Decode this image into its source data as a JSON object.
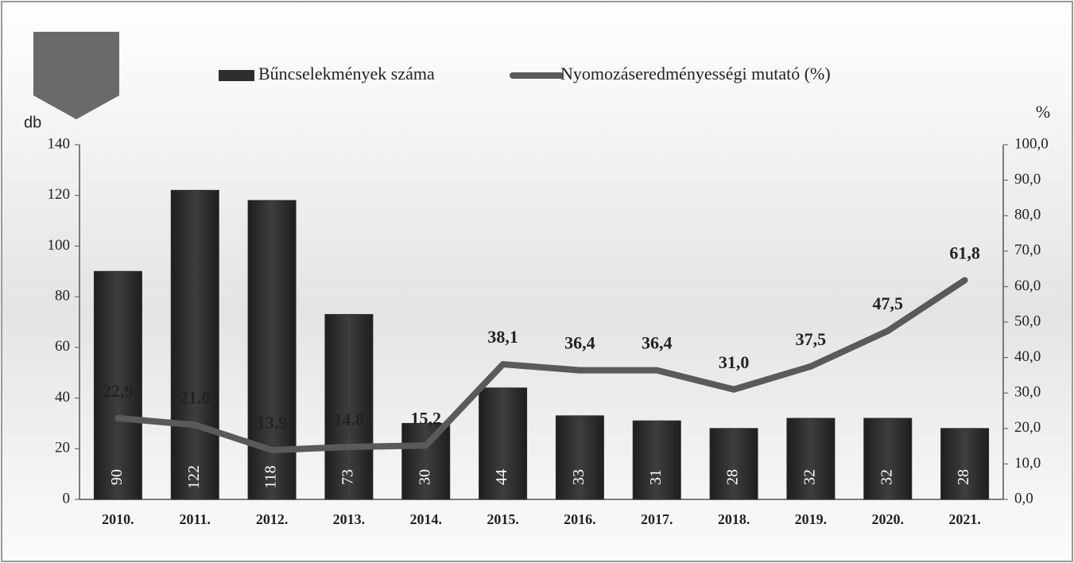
{
  "chart_data": {
    "type": "bar_line",
    "legend": "top",
    "y_label": "db",
    "y2_label": "%",
    "categories": [
      "2010.",
      "2011.",
      "2012.",
      "2013.",
      "2014.",
      "2015.",
      "2016.",
      "2017.",
      "2018.",
      "2019.",
      "2020.",
      "2021."
    ],
    "series": [
      {
        "name": "Bűncselekmények száma",
        "color": "#2e2e2e",
        "values": [
          90,
          122,
          118,
          73,
          30,
          44,
          33,
          31,
          28,
          32,
          32,
          28
        ]
      },
      {
        "name": "Nyomozáseredményességi mutató (%)",
        "color": "#5a5a5a",
        "axis": "y2",
        "values": [
          22.9,
          21.0,
          13.9,
          14.8,
          15.2,
          38.1,
          36.4,
          36.4,
          31.0,
          37.5,
          47.5,
          61.8
        ],
        "value_labels": [
          "22,9",
          "21.0",
          "13.9",
          "14.8",
          "15,2",
          "38,1",
          "36,4",
          "36,4",
          "31,0",
          "37,5",
          "47,5",
          "61,8"
        ]
      }
    ],
    "ylim": [
      0,
      140
    ],
    "yticks": [
      0,
      20,
      40,
      60,
      80,
      100,
      120,
      140
    ],
    "y2lim": [
      0,
      100
    ],
    "y2ticks": [
      {
        "value": 0,
        "label": "0,0"
      },
      {
        "value": 10,
        "label": "10,0"
      },
      {
        "value": 20,
        "label": "20,0"
      },
      {
        "value": 30,
        "label": "30,0"
      },
      {
        "value": 40,
        "label": "40,0"
      },
      {
        "value": 50,
        "label": "50,0"
      },
      {
        "value": 60,
        "label": "60,0"
      },
      {
        "value": 70,
        "label": "70,0"
      },
      {
        "value": 80,
        "label": "80,0"
      },
      {
        "value": 90,
        "label": "90,0"
      },
      {
        "value": 100,
        "label": "100,0"
      }
    ]
  }
}
